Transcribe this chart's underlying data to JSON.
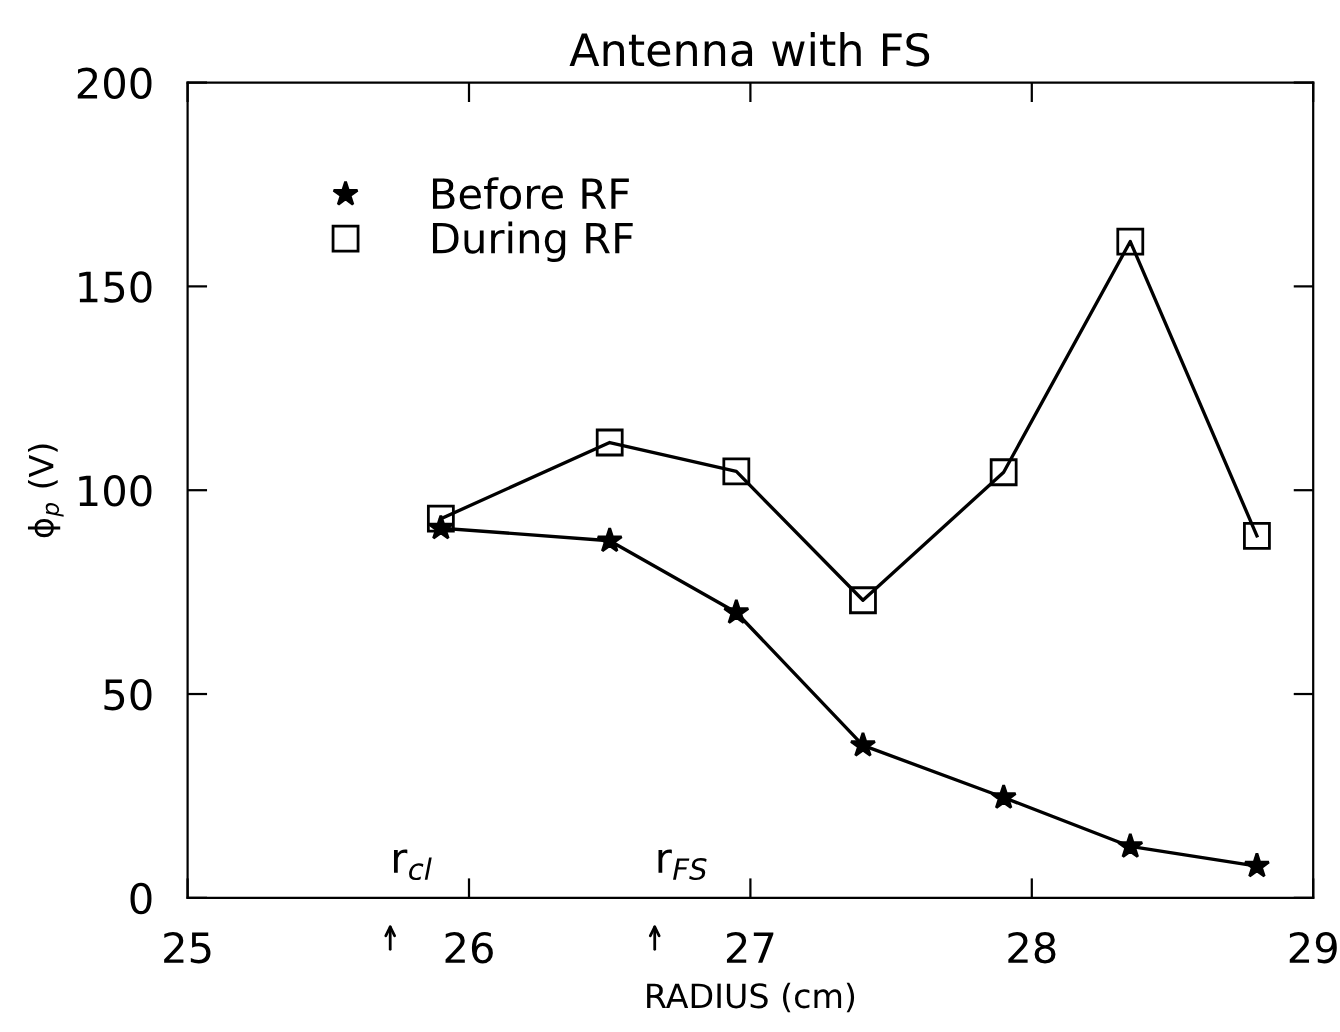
{
  "chart_data": {
    "type": "line",
    "title": "Antenna with FS",
    "xlabel": "RADIUS (cm)",
    "ylabel": "ϕ$_{p}$ (V)",
    "xlim": [
      25,
      29
    ],
    "xticks": [
      25,
      26,
      27,
      28,
      29
    ],
    "ylim": [
      0,
      200
    ],
    "yticks": [
      0,
      50,
      100,
      150,
      200
    ],
    "grid": false,
    "legend": "top left",
    "series": [
      {
        "name": "Before RF",
        "color": "#000000",
        "marker": "star",
        "x": [
          25.9,
          26.5,
          26.95,
          27.4,
          27.9,
          28.35,
          28.8
        ],
        "values": [
          90.7,
          87.6,
          70,
          37.4,
          24.6,
          12.6,
          7.8
        ]
      },
      {
        "name": "During RF",
        "color": "#000000",
        "marker": "square",
        "x": [
          25.9,
          26.5,
          26.95,
          27.4,
          27.9,
          28.35,
          28.8
        ],
        "values": [
          93,
          111.7,
          104.6,
          73,
          104.4,
          161,
          88.8
        ]
      }
    ],
    "annotations": [
      "r$_{cl}$",
      "r$_{FS}$"
    ]
  }
}
